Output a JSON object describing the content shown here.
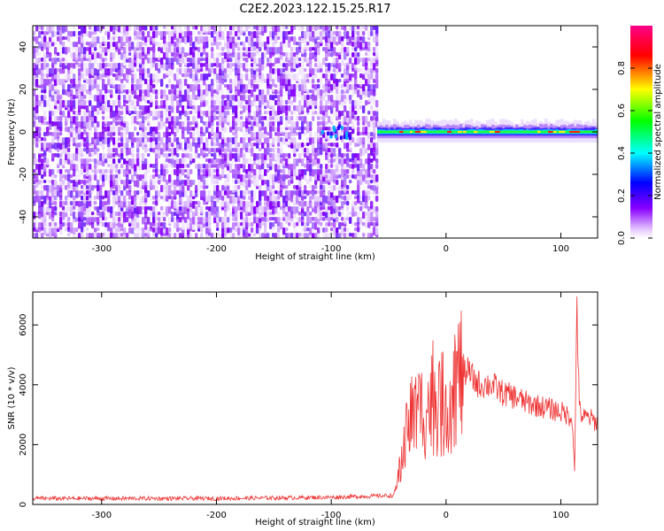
{
  "title": "C2E2.2023.122.15.25.R17",
  "chart_data": [
    {
      "type": "heatmap",
      "xlabel": "Height of straight line (km)",
      "ylabel": "Frequency (Hz)",
      "xlim": [
        -360,
        132
      ],
      "ylim": [
        -50,
        50
      ],
      "xticks": [
        -300,
        -200,
        -100,
        0,
        100
      ],
      "yticks": [
        -40,
        -20,
        0,
        20,
        40
      ],
      "noise_region_x": [
        -360,
        -60
      ],
      "signal_region_x": [
        -60,
        132
      ],
      "signal_frequency": 0,
      "colorbar": {
        "label": "Normalized spectral amplitude",
        "ticks": [
          0.0,
          0.2,
          0.4,
          0.6,
          0.8
        ],
        "range": [
          0,
          1
        ],
        "colors": [
          "#ffffff",
          "#8800ff",
          "#0000ff",
          "#00ffff",
          "#00ff00",
          "#ffff00",
          "#ff0000",
          "#ff0088"
        ]
      }
    },
    {
      "type": "line",
      "xlabel": "Height of straight line (km)",
      "ylabel": "SNR (10 * v/v)",
      "xlim": [
        -360,
        132
      ],
      "ylim": [
        0,
        7100
      ],
      "xticks": [
        -300,
        -200,
        -100,
        0,
        100
      ],
      "yticks": [
        0,
        2000,
        4000,
        6000
      ],
      "color": "#ee3333",
      "x": [
        -360,
        -300,
        -200,
        -100,
        -45,
        -40,
        -35,
        -30,
        -25,
        -20,
        -15,
        -10,
        -5,
        0,
        5,
        10,
        15,
        20,
        25,
        30,
        40,
        50,
        60,
        70,
        80,
        90,
        100,
        105,
        110,
        112,
        114,
        116,
        118,
        120,
        125,
        132
      ],
      "y": [
        200,
        200,
        200,
        240,
        300,
        1200,
        2400,
        3000,
        3000,
        3200,
        3300,
        3500,
        3400,
        3200,
        3800,
        4200,
        4500,
        4400,
        4100,
        4000,
        4000,
        3700,
        3600,
        3400,
        3300,
        3200,
        3100,
        3000,
        2900,
        1000,
        6900,
        3200,
        3000,
        2900,
        2900,
        2700
      ]
    }
  ]
}
